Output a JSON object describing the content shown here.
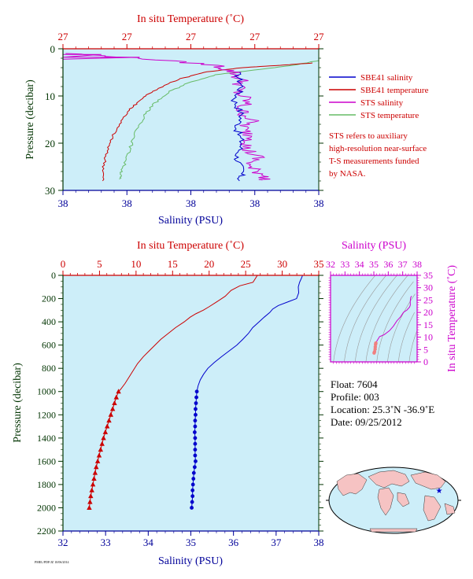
{
  "colors": {
    "salinity": "#0000cc",
    "temperature": "#cc0000",
    "sts_salinity": "#cc00cc",
    "sts_temperature": "#66bb66",
    "plot_bg": "#cdeef9",
    "axis_red": "#cc0000",
    "axis_blue": "#000099",
    "axis_green": "#003300",
    "ts_magenta": "#cc00cc"
  },
  "top_panel": {
    "xlabel_top": "In situ Temperature (˚C)",
    "xlabel_bottom": "Salinity (PSU)",
    "ylabel": "Pressure (decibar)",
    "temp_ticks": [
      "27",
      "27",
      "27",
      "27",
      "27"
    ],
    "sal_ticks": [
      "38",
      "38",
      "38",
      "38",
      "38"
    ],
    "pressure_ticks": [
      "0",
      "10",
      "20",
      "30"
    ],
    "legend": [
      "SBE41 salinity",
      "SBE41 temperature",
      "STS salinity",
      "STS temperature"
    ],
    "note_lines": [
      "STS refers to auxiliary",
      "high-resolution near-surface",
      "T-S measurements funded",
      "by NASA."
    ]
  },
  "main_panel": {
    "xlabel_top": "In situ Temperature (˚C)",
    "xlabel_bottom": "Salinity (PSU)",
    "ylabel": "Pressure (decibar)",
    "temp_ticks": [
      "0",
      "5",
      "10",
      "15",
      "20",
      "25",
      "30",
      "35"
    ],
    "sal_ticks": [
      "32",
      "33",
      "34",
      "35",
      "36",
      "37",
      "38"
    ],
    "pressure_ticks": [
      "0",
      "200",
      "400",
      "600",
      "800",
      "1000",
      "1200",
      "1400",
      "1600",
      "1800",
      "2000",
      "2200"
    ]
  },
  "ts_panel": {
    "xlabel": "Salinity (PSU)",
    "ylabel": "In situ Temperature (˚C)",
    "sal_ticks": [
      "32",
      "33",
      "34",
      "35",
      "36",
      "37",
      "38"
    ],
    "temp_ticks": [
      "0",
      "5",
      "10",
      "15",
      "20",
      "25",
      "30",
      "35"
    ]
  },
  "info": {
    "float": "Float:  7604",
    "profile": "Profile:  003",
    "location": "Location:  25.3˚N  -36.9˚E",
    "date": "Date:  09/25/2012"
  },
  "footer": "PMEL/PDF/JZ 10/06/2014",
  "chart_data": [
    {
      "type": "line",
      "name": "main_profile",
      "xlabel": "Salinity (PSU)",
      "x2label": "In situ Temperature (˚C)",
      "ylabel": "Pressure (decibar)",
      "xlim_salinity": [
        32,
        38
      ],
      "xlim_temperature": [
        0,
        35
      ],
      "ylim": [
        2200,
        0
      ],
      "series": [
        {
          "name": "salinity",
          "points": [
            [
              37.62,
              0
            ],
            [
              37.6,
              20
            ],
            [
              37.55,
              60
            ],
            [
              37.52,
              100
            ],
            [
              37.53,
              150
            ],
            [
              37.48,
              200
            ],
            [
              37.3,
              225
            ],
            [
              37.05,
              260
            ],
            [
              36.92,
              290
            ],
            [
              36.85,
              320
            ],
            [
              36.72,
              360
            ],
            [
              36.6,
              400
            ],
            [
              36.45,
              450
            ],
            [
              36.35,
              500
            ],
            [
              36.22,
              550
            ],
            [
              36.08,
              600
            ],
            [
              35.9,
              650
            ],
            [
              35.72,
              700
            ],
            [
              35.55,
              750
            ],
            [
              35.4,
              800
            ],
            [
              35.3,
              850
            ],
            [
              35.22,
              900
            ],
            [
              35.17,
              950
            ],
            [
              35.14,
              1000
            ],
            [
              35.13,
              1050
            ],
            [
              35.12,
              1100
            ],
            [
              35.11,
              1150
            ],
            [
              35.11,
              1200
            ],
            [
              35.1,
              1250
            ],
            [
              35.1,
              1300
            ],
            [
              35.09,
              1350
            ],
            [
              35.1,
              1400
            ],
            [
              35.1,
              1450
            ],
            [
              35.1,
              1500
            ],
            [
              35.1,
              1550
            ],
            [
              35.11,
              1600
            ],
            [
              35.09,
              1650
            ],
            [
              35.07,
              1700
            ],
            [
              35.06,
              1750
            ],
            [
              35.05,
              1800
            ],
            [
              35.04,
              1850
            ],
            [
              35.04,
              1900
            ],
            [
              35.03,
              1950
            ],
            [
              35.02,
              2000
            ]
          ],
          "markers_from_pressure": 1000
        },
        {
          "name": "temperature",
          "points": [
            [
              26.6,
              0
            ],
            [
              26.4,
              20
            ],
            [
              26.0,
              60
            ],
            [
              24.2,
              90
            ],
            [
              23.0,
              130
            ],
            [
              22.2,
              180
            ],
            [
              21.0,
              230
            ],
            [
              20.0,
              270
            ],
            [
              19.2,
              300
            ],
            [
              18.2,
              330
            ],
            [
              17.4,
              360
            ],
            [
              16.6,
              400
            ],
            [
              15.4,
              450
            ],
            [
              14.4,
              500
            ],
            [
              13.4,
              550
            ],
            [
              12.6,
              600
            ],
            [
              11.8,
              650
            ],
            [
              11.0,
              700
            ],
            [
              10.2,
              760
            ],
            [
              9.6,
              820
            ],
            [
              9.0,
              880
            ],
            [
              8.5,
              930
            ],
            [
              7.9,
              980
            ],
            [
              7.6,
              1000
            ],
            [
              7.3,
              1050
            ],
            [
              7.05,
              1100
            ],
            [
              6.8,
              1150
            ],
            [
              6.55,
              1200
            ],
            [
              6.3,
              1250
            ],
            [
              6.05,
              1300
            ],
            [
              5.8,
              1350
            ],
            [
              5.55,
              1400
            ],
            [
              5.35,
              1450
            ],
            [
              5.15,
              1500
            ],
            [
              4.95,
              1550
            ],
            [
              4.75,
              1600
            ],
            [
              4.55,
              1650
            ],
            [
              4.4,
              1700
            ],
            [
              4.25,
              1750
            ],
            [
              4.1,
              1800
            ],
            [
              3.95,
              1850
            ],
            [
              3.8,
              1900
            ],
            [
              3.7,
              1950
            ],
            [
              3.6,
              2000
            ]
          ],
          "markers_from_pressure": 1000
        }
      ]
    },
    {
      "type": "line",
      "name": "near_surface_profile",
      "xlabel": "Salinity (PSU)",
      "x2label": "In situ Temperature (˚C)",
      "ylabel": "Pressure (decibar)",
      "ylim": [
        30,
        0
      ],
      "x_scale_note": "tick labels all read 27 (temperature) and 38 (salinity); values below are relative positions 0-1 across the axis range",
      "series": [
        {
          "name": "SBE41 salinity",
          "points": [
            [
              0.68,
              5
            ],
            [
              0.7,
              8
            ],
            [
              0.67,
              11
            ],
            [
              0.7,
              14
            ],
            [
              0.68,
              17
            ],
            [
              0.7,
              20
            ],
            [
              0.68,
              23
            ],
            [
              0.7,
              26
            ],
            [
              0.69,
              28
            ]
          ]
        },
        {
          "name": "SBE41 temperature",
          "points": [
            [
              0.98,
              3
            ],
            [
              0.85,
              3.5
            ],
            [
              0.7,
              4
            ],
            [
              0.55,
              5
            ],
            [
              0.45,
              6.5
            ],
            [
              0.35,
              9
            ],
            [
              0.3,
              11
            ],
            [
              0.26,
              13
            ],
            [
              0.22,
              16
            ],
            [
              0.19,
              19
            ],
            [
              0.17,
              22
            ],
            [
              0.16,
              25
            ],
            [
              0.155,
              28
            ]
          ]
        },
        {
          "name": "STS salinity",
          "points": [
            [
              0.02,
              1
            ],
            [
              0.3,
              2
            ],
            [
              0.6,
              3.5
            ],
            [
              0.67,
              5
            ],
            [
              0.7,
              7
            ],
            [
              0.68,
              9
            ],
            [
              0.72,
              11
            ],
            [
              0.69,
              13
            ],
            [
              0.74,
              15
            ],
            [
              0.7,
              17
            ],
            [
              0.75,
              19
            ],
            [
              0.71,
              21
            ],
            [
              0.76,
              23
            ],
            [
              0.72,
              25
            ],
            [
              0.8,
              27
            ],
            [
              0.78,
              27.8
            ]
          ]
        },
        {
          "name": "STS temperature",
          "points": [
            [
              1.0,
              2.5
            ],
            [
              0.9,
              3.5
            ],
            [
              0.75,
              4.5
            ],
            [
              0.6,
              5.5
            ],
            [
              0.5,
              7
            ],
            [
              0.42,
              9
            ],
            [
              0.36,
              11.5
            ],
            [
              0.32,
              14
            ],
            [
              0.29,
              17
            ],
            [
              0.27,
              20
            ],
            [
              0.25,
              23
            ],
            [
              0.23,
              26
            ],
            [
              0.22,
              27.6
            ]
          ]
        }
      ]
    },
    {
      "type": "scatter",
      "name": "ts_diagram",
      "xlabel": "Salinity (PSU)",
      "ylabel": "In situ Temperature (˚C)",
      "xlim": [
        32,
        38
      ],
      "ylim": [
        0,
        35
      ],
      "series": [
        {
          "name": "profile",
          "points": [
            [
              35.02,
              3.6
            ],
            [
              35.05,
              4.1
            ],
            [
              35.09,
              5.15
            ],
            [
              35.1,
              6.05
            ],
            [
              35.12,
              7.05
            ],
            [
              35.14,
              7.6
            ],
            [
              35.22,
              8.5
            ],
            [
              35.4,
              10.2
            ],
            [
              35.72,
              11.0
            ],
            [
              36.08,
              12.6
            ],
            [
              36.35,
              14.4
            ],
            [
              36.6,
              16.6
            ],
            [
              36.85,
              18.2
            ],
            [
              37.05,
              20.0
            ],
            [
              37.3,
              21.0
            ],
            [
              37.48,
              22.2
            ],
            [
              37.53,
              23.0
            ],
            [
              37.52,
              24.2
            ],
            [
              37.55,
              26.0
            ],
            [
              37.62,
              26.6
            ]
          ]
        }
      ]
    }
  ]
}
